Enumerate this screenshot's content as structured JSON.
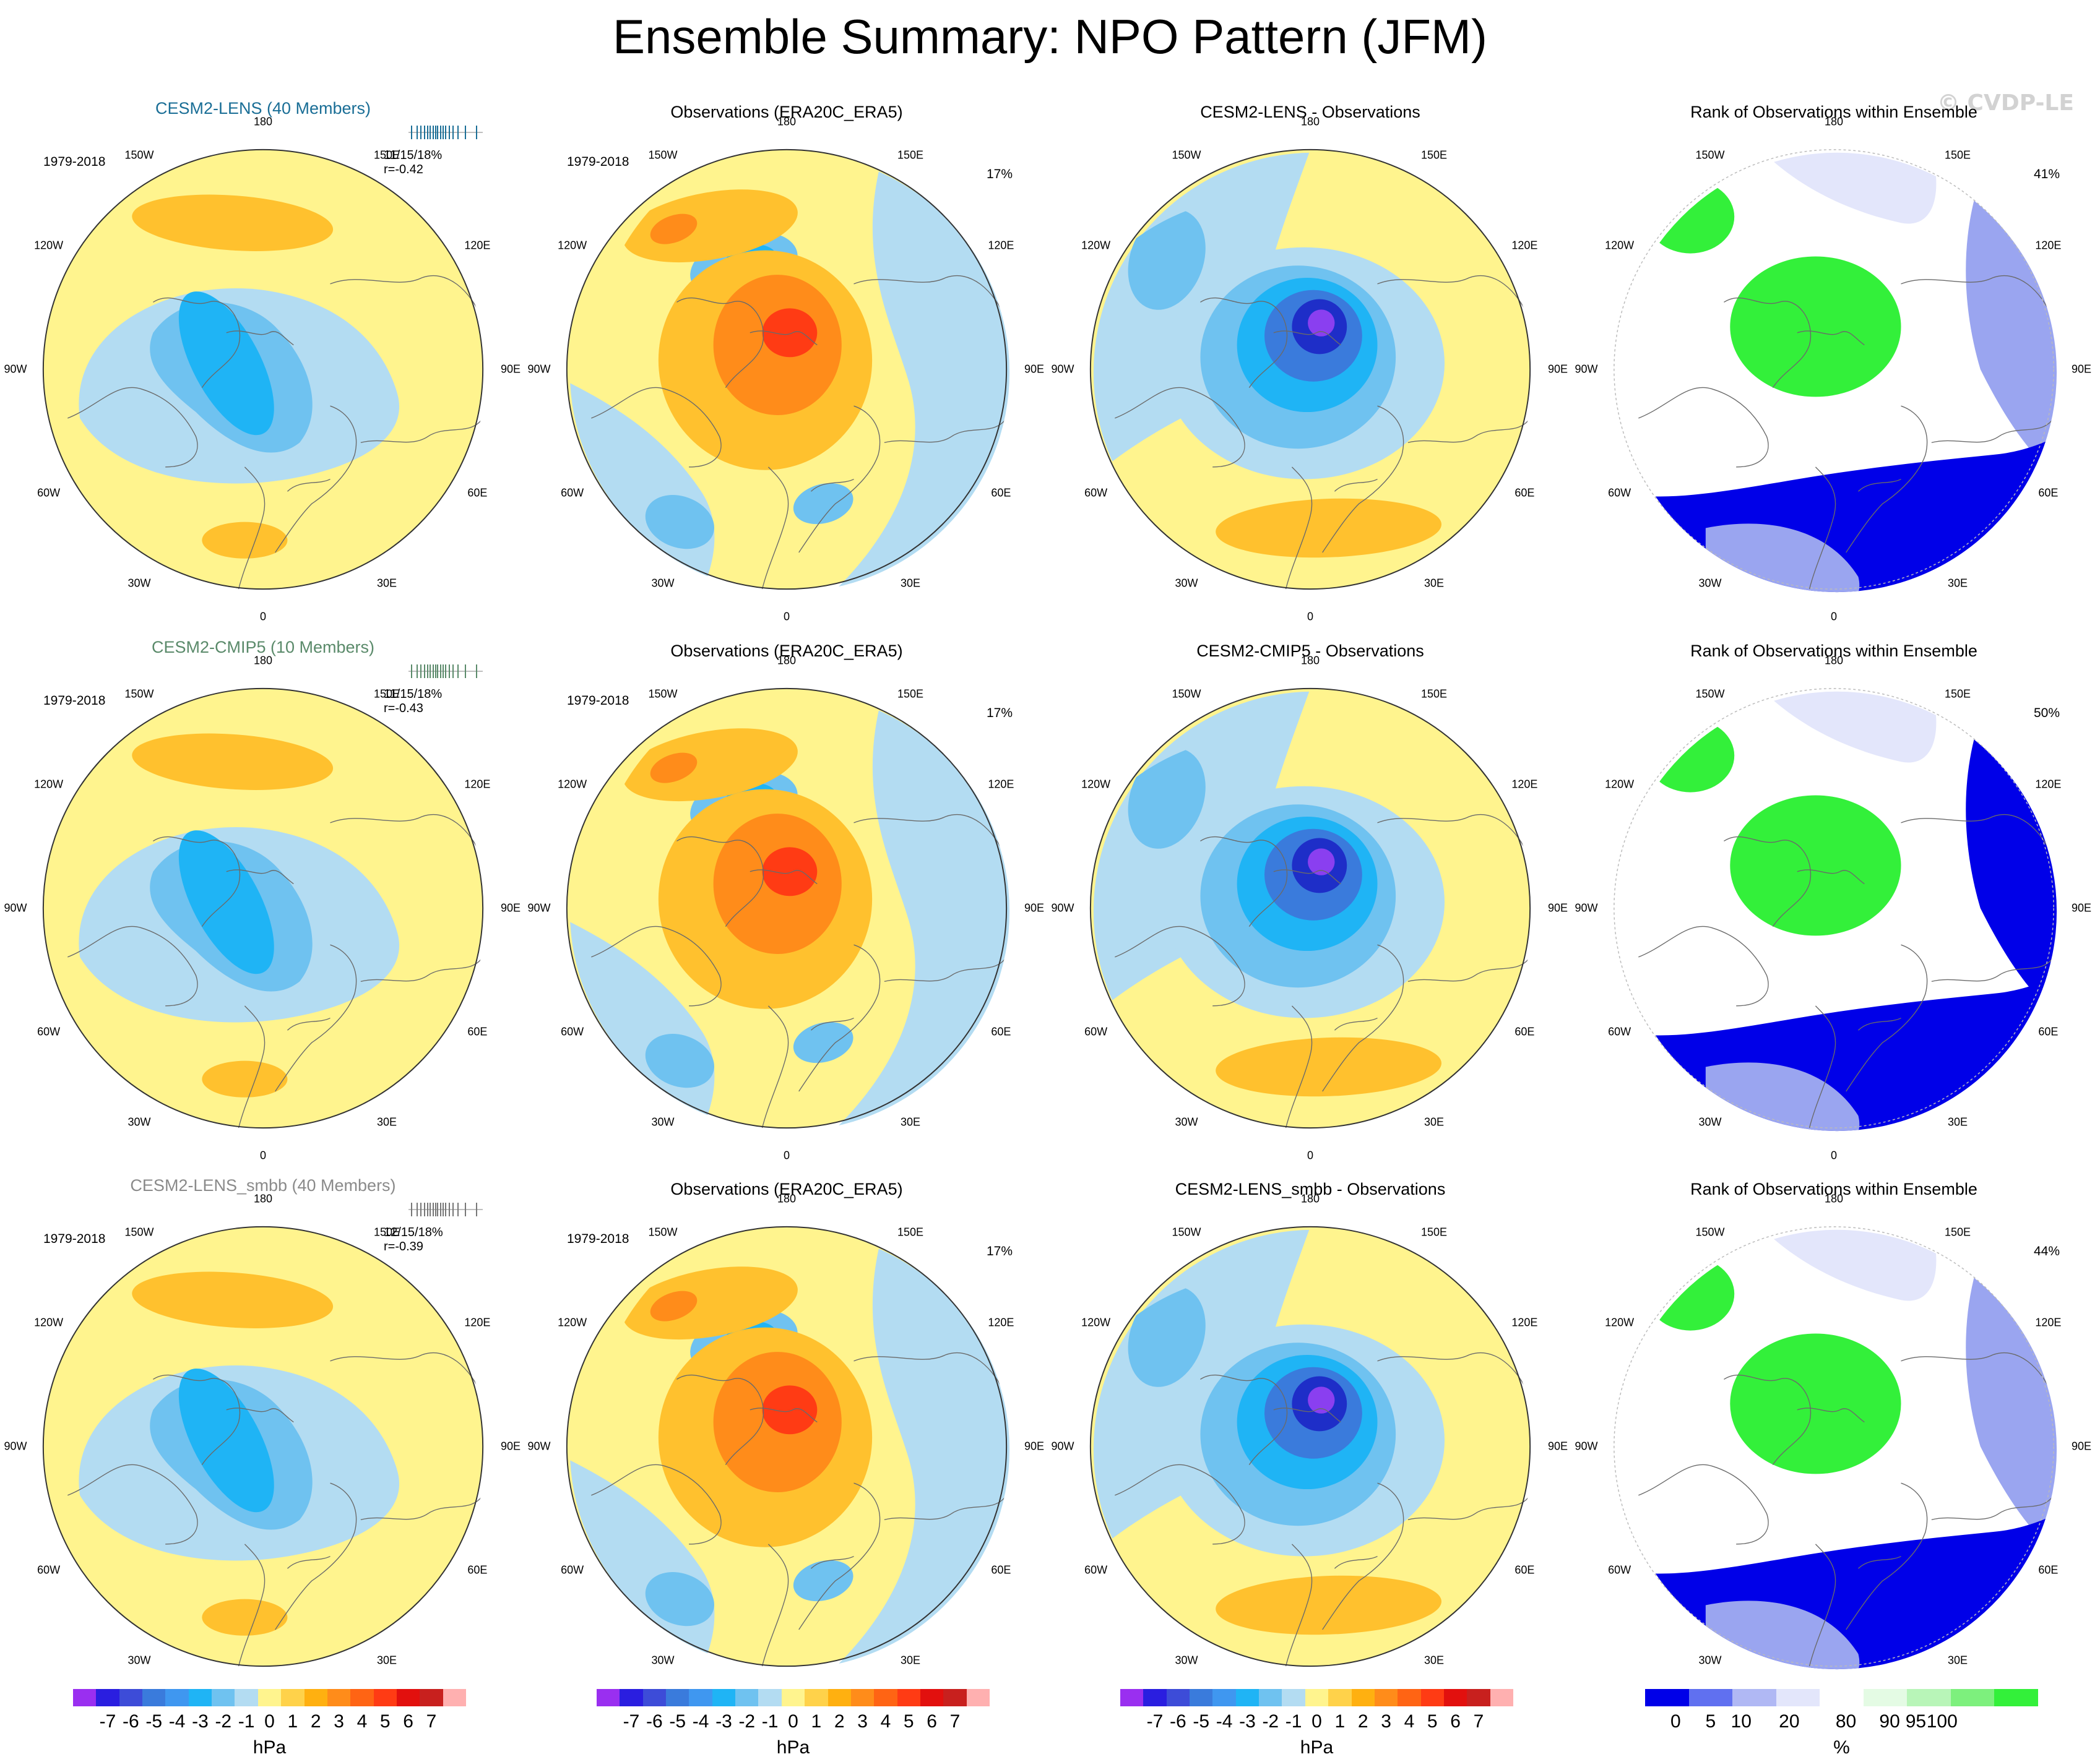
{
  "title": "Ensemble Summary: NPO Pattern (JFM)",
  "watermark": "© CVDP-LE",
  "colors": {
    "yellow": "#fff48e",
    "lightblue": "#b3dcf2",
    "orange": "#ffc12e",
    "darkorange": "#ff8c1a",
    "red": "#ff3b14",
    "blue1": "#6fc2f0",
    "blue2": "#1fb4f5",
    "blue3": "#3a7bdc",
    "navy": "#1e2ec8",
    "purple": "#8a3ff0",
    "green": "#33f03a",
    "rankblue": "#0000e8",
    "ranklav": "#9aa5f0",
    "rankpale": "#e3e6fb"
  },
  "rows": [
    {
      "model_title": "CESM2-LENS (40 Members)",
      "years": "1979-2018",
      "stat_pct": "11/15/18%",
      "stat_r": "r=-0.42",
      "obs_title": "Observations (ERA20C_ERA5)",
      "obs_years": "1979-2018",
      "obs_pct": "17%",
      "diff_title": "CESM2-LENS - Observations",
      "rank_title": "Rank of Observations within Ensemble",
      "rank_pct": "41%"
    },
    {
      "model_title": "CESM2-CMIP5 (10 Members)",
      "years": "1979-2018",
      "stat_pct": "11/15/18%",
      "stat_r": "r=-0.43",
      "obs_title": "Observations (ERA20C_ERA5)",
      "obs_years": "1979-2018",
      "obs_pct": "17%",
      "diff_title": "CESM2-CMIP5 - Observations",
      "rank_title": "Rank of Observations within Ensemble",
      "rank_pct": "50%"
    },
    {
      "model_title": "CESM2-LENS_smbb (40 Members)",
      "years": "1979-2018",
      "stat_pct": "12/15/18%",
      "stat_r": "r=-0.39",
      "obs_title": "Observations (ERA20C_ERA5)",
      "obs_years": "1979-2018",
      "obs_pct": "17%",
      "diff_title": "CESM2-LENS_smbb - Observations",
      "rank_title": "Rank of Observations within Ensemble",
      "rank_pct": "44%"
    }
  ],
  "longitude_labels": [
    "180",
    "150E",
    "120E",
    "90E",
    "60E",
    "30E",
    "0",
    "30W",
    "60W",
    "90W",
    "120W",
    "150W"
  ],
  "hpa_colorbar": {
    "ticks": [
      "-7",
      "-6",
      "-5",
      "-4",
      "-3",
      "-2",
      "-1",
      "0",
      "1",
      "2",
      "3",
      "4",
      "5",
      "6",
      "7"
    ],
    "unit": "hPa",
    "colors": [
      "#9a2ff0",
      "#2a1ee0",
      "#3d4cd8",
      "#3a7bdc",
      "#3f97f0",
      "#1fb4f5",
      "#6fc2f0",
      "#b3dcf2",
      "#fff48e",
      "#ffd24a",
      "#ffb010",
      "#ff8c1a",
      "#ff6414",
      "#ff3b14",
      "#e2100e",
      "#c8201e",
      "#ffb0b0"
    ]
  },
  "rank_colorbar": {
    "ticks": [
      "0",
      "5",
      "10",
      "20",
      "80",
      "90",
      "95",
      "100"
    ],
    "unit": "%",
    "colors": [
      "#0000e8",
      "#6070f0",
      "#b0b8f4",
      "#e3e6fb",
      "#ffffff",
      "#e4fbe4",
      "#b8f5b8",
      "#7df07d",
      "#33f03a"
    ]
  }
}
